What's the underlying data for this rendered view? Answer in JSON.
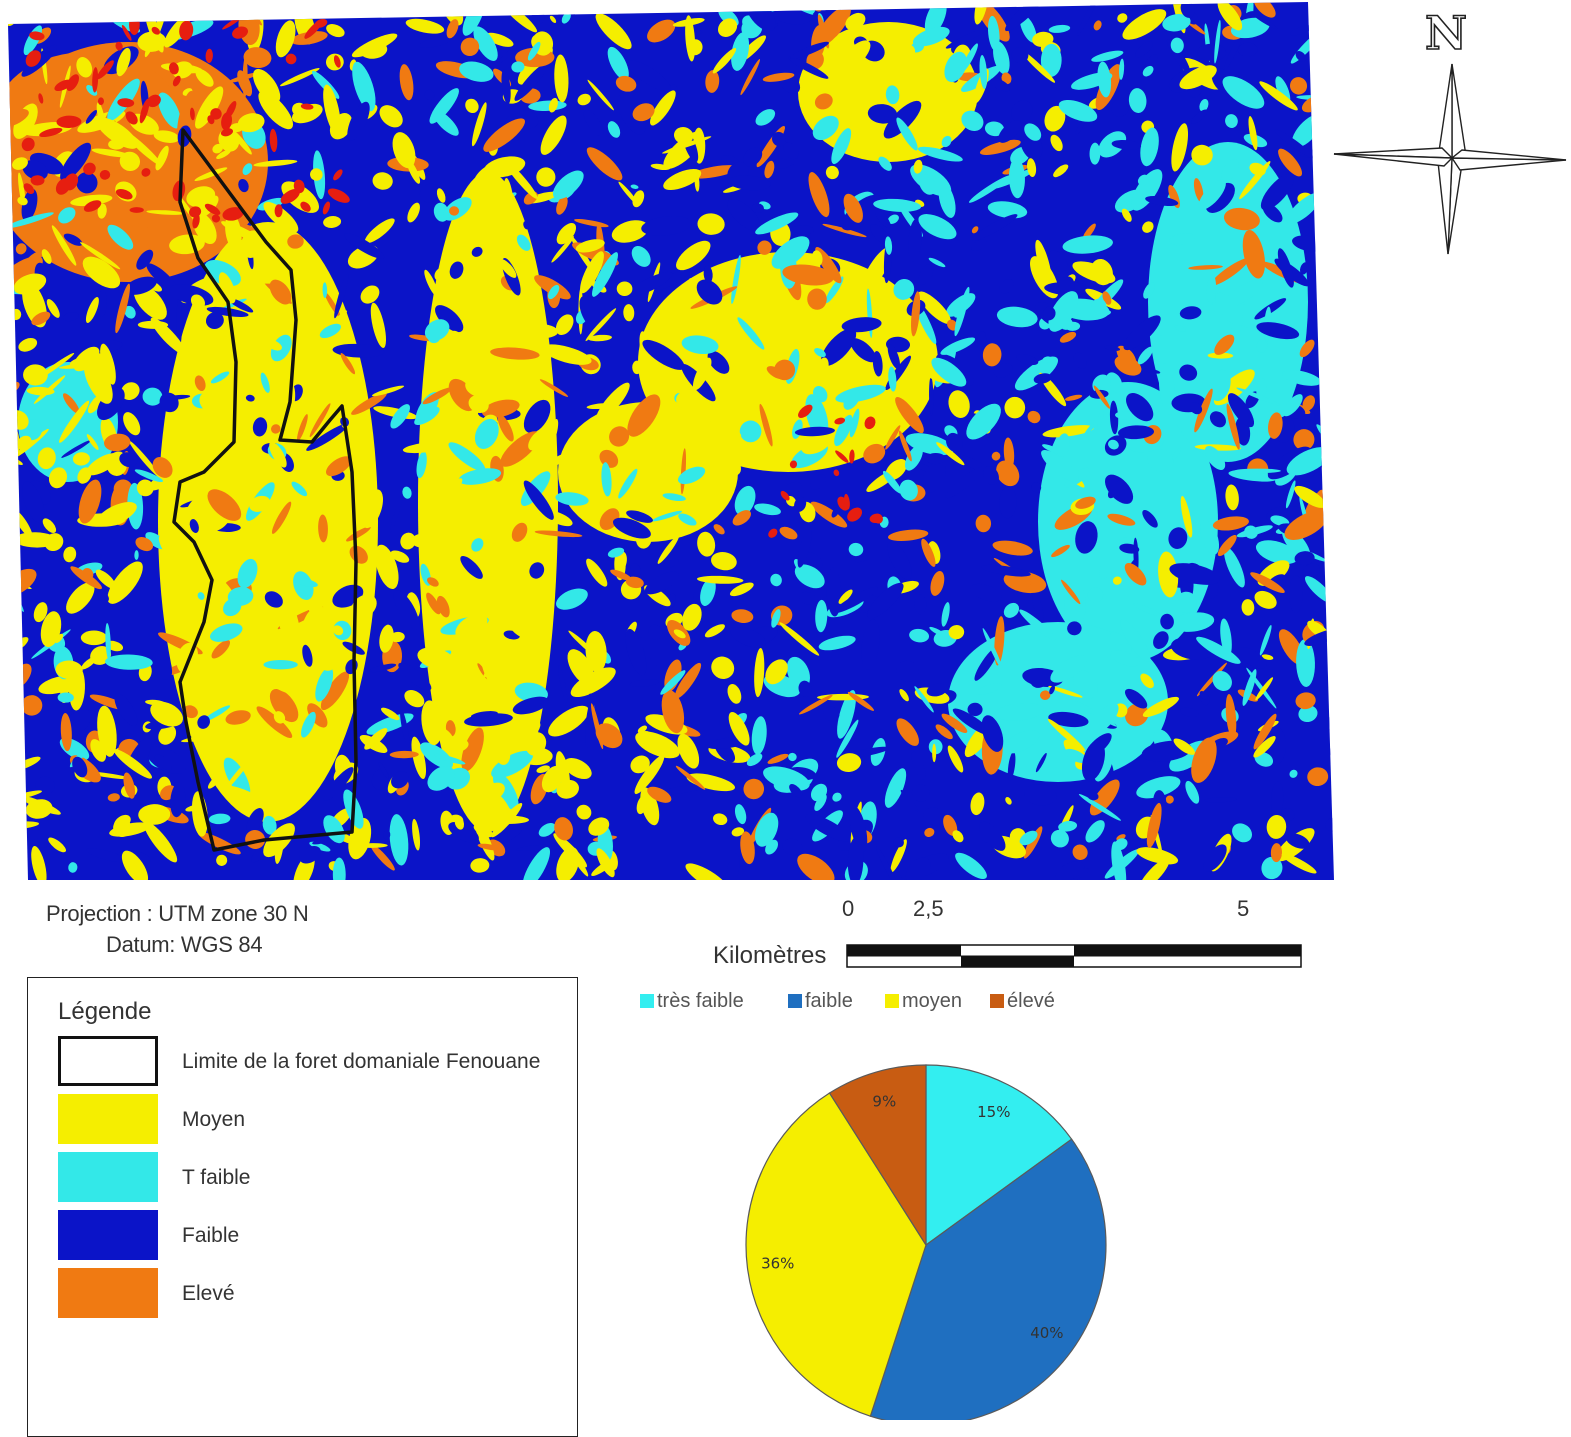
{
  "map": {
    "colors": {
      "tres_faible": "#33e8e8",
      "faible": "#0b14c8",
      "moyen": "#f5ee00",
      "eleve": "#f07a12",
      "tres_eleve": "#e61e10",
      "boundary": "#111111"
    }
  },
  "north_arrow": {
    "letter": "N"
  },
  "projection": {
    "line1": "Projection : UTM zone 30 N",
    "line2": "Datum: WGS 84"
  },
  "scale": {
    "tick_0": "0",
    "tick_mid": "2,5",
    "tick_end": "5",
    "unit": "Kilomètres"
  },
  "legend": {
    "title": "Légende",
    "items": [
      {
        "label": "Limite de la foret domaniale Fenouane",
        "color": "#ffffff",
        "outline": true
      },
      {
        "label": "Moyen",
        "color": "#f5ee00"
      },
      {
        "label": "T faible",
        "color": "#33e8e8"
      },
      {
        "label": "Faible",
        "color": "#0b14c8"
      },
      {
        "label": "Elevé",
        "color": "#f07a12"
      }
    ]
  },
  "chart_data": {
    "type": "pie",
    "legend": [
      {
        "label": "très faible",
        "color": "#33eef0"
      },
      {
        "label": "faible",
        "color": "#1f6fc0"
      },
      {
        "label": "moyen",
        "color": "#f5ee00"
      },
      {
        "label": "élevé",
        "color": "#c85c12"
      }
    ],
    "slices": [
      {
        "category": "très faible",
        "value": 15,
        "label": "15%",
        "color": "#33eef0"
      },
      {
        "category": "faible",
        "value": 40,
        "label": "40%",
        "color": "#1f6fc0"
      },
      {
        "category": "moyen",
        "value": 36,
        "label": "36%",
        "color": "#f5ee00"
      },
      {
        "category": "élevé",
        "value": 9,
        "label": "9%",
        "color": "#c85c12"
      }
    ]
  }
}
